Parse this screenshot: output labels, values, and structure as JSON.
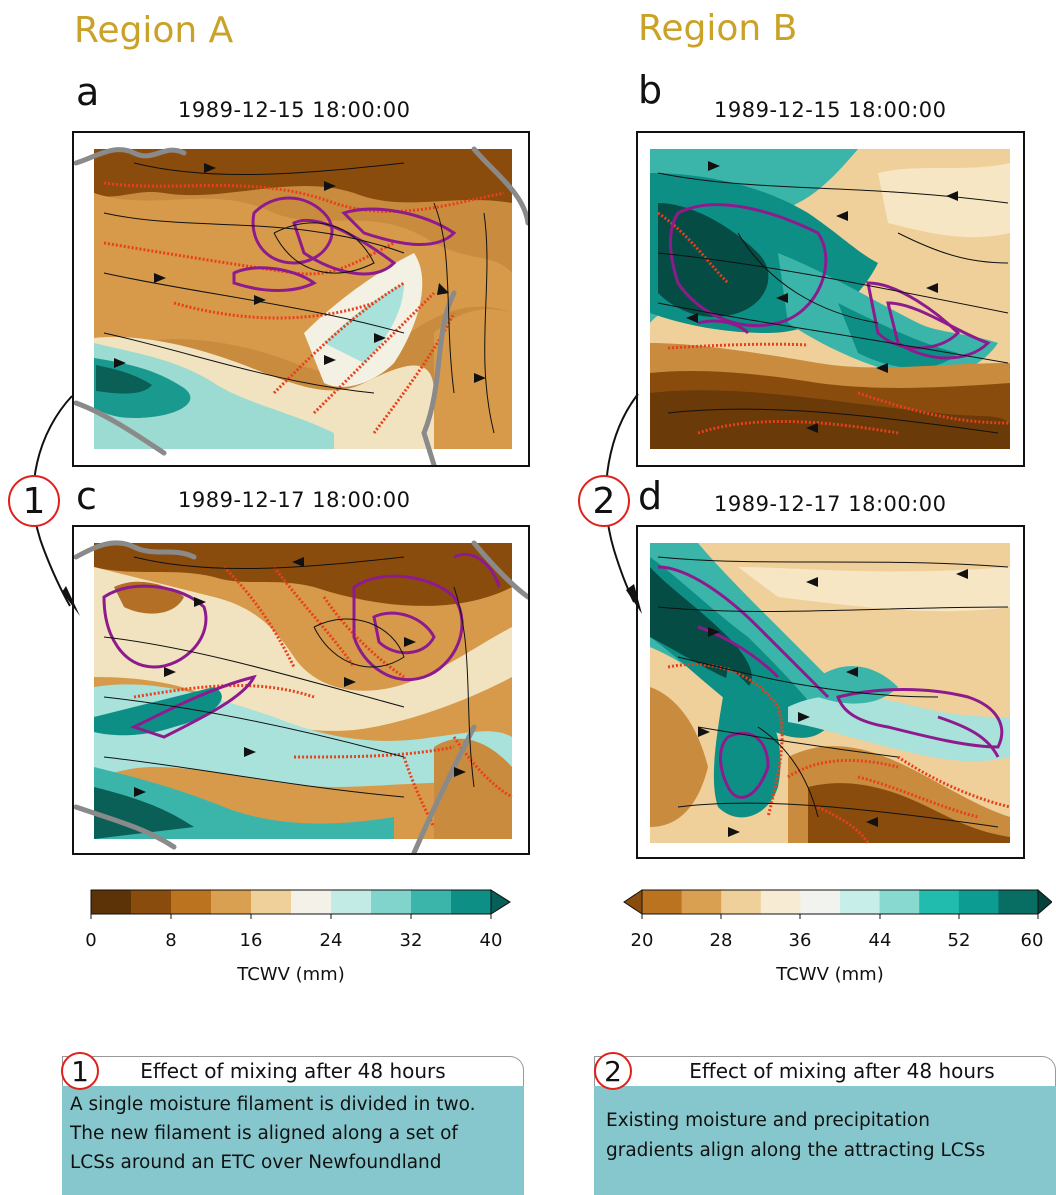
{
  "regions": {
    "a_title": "Region A",
    "b_title": "Region B"
  },
  "panels": {
    "a": {
      "letter": "a",
      "timestamp": "1989-12-15 18:00:00"
    },
    "b": {
      "letter": "b",
      "timestamp": "1989-12-15 18:00:00"
    },
    "c": {
      "letter": "c",
      "timestamp": "1989-12-17 18:00:00"
    },
    "d": {
      "letter": "d",
      "timestamp": "1989-12-17 18:00:00"
    }
  },
  "steps": {
    "one": "1",
    "two": "2"
  },
  "colorbars": {
    "left": {
      "ticks": [
        "0",
        "8",
        "16",
        "24",
        "32",
        "40"
      ],
      "label": "TCWV (mm)",
      "colors": [
        "#5c3307",
        "#8a4c0d",
        "#bb7320",
        "#d9a052",
        "#efd09a",
        "#f4f1e8",
        "#c3ebe6",
        "#80d4cb",
        "#3bb5aa",
        "#0e8f86",
        "#085f57"
      ],
      "extend": "max"
    },
    "right": {
      "ticks": [
        "20",
        "28",
        "36",
        "44",
        "52",
        "60"
      ],
      "label": "TCWV (mm)",
      "colors": [
        "#8a4c0d",
        "#bb7320",
        "#d9a052",
        "#efd09a",
        "#f7ecd3",
        "#f2f2ee",
        "#c8eee9",
        "#88d9cf",
        "#22bcae",
        "#0d9c91",
        "#086d63",
        "#04423c"
      ],
      "extend": "both"
    }
  },
  "notes": [
    {
      "num": "1",
      "header": "Effect of mixing after 48 hours",
      "lines": [
        "A single moisture filament is divided in two.",
        "The new filament is aligned along a set of",
        "LCSs around an ETC over Newfoundland"
      ]
    },
    {
      "num": "2",
      "header": "Effect of mixing after 48 hours",
      "lines": [
        "Existing moisture and precipitation",
        "gradients align along the attracting LCSs"
      ]
    }
  ],
  "colors": {
    "region_title": "#c9a227",
    "lcs": "#e8401c",
    "precip_contour": "#8e1b8e",
    "coastline": "#8a8a8a",
    "circle": "#e0201b",
    "note_body": "#86c7cd"
  }
}
